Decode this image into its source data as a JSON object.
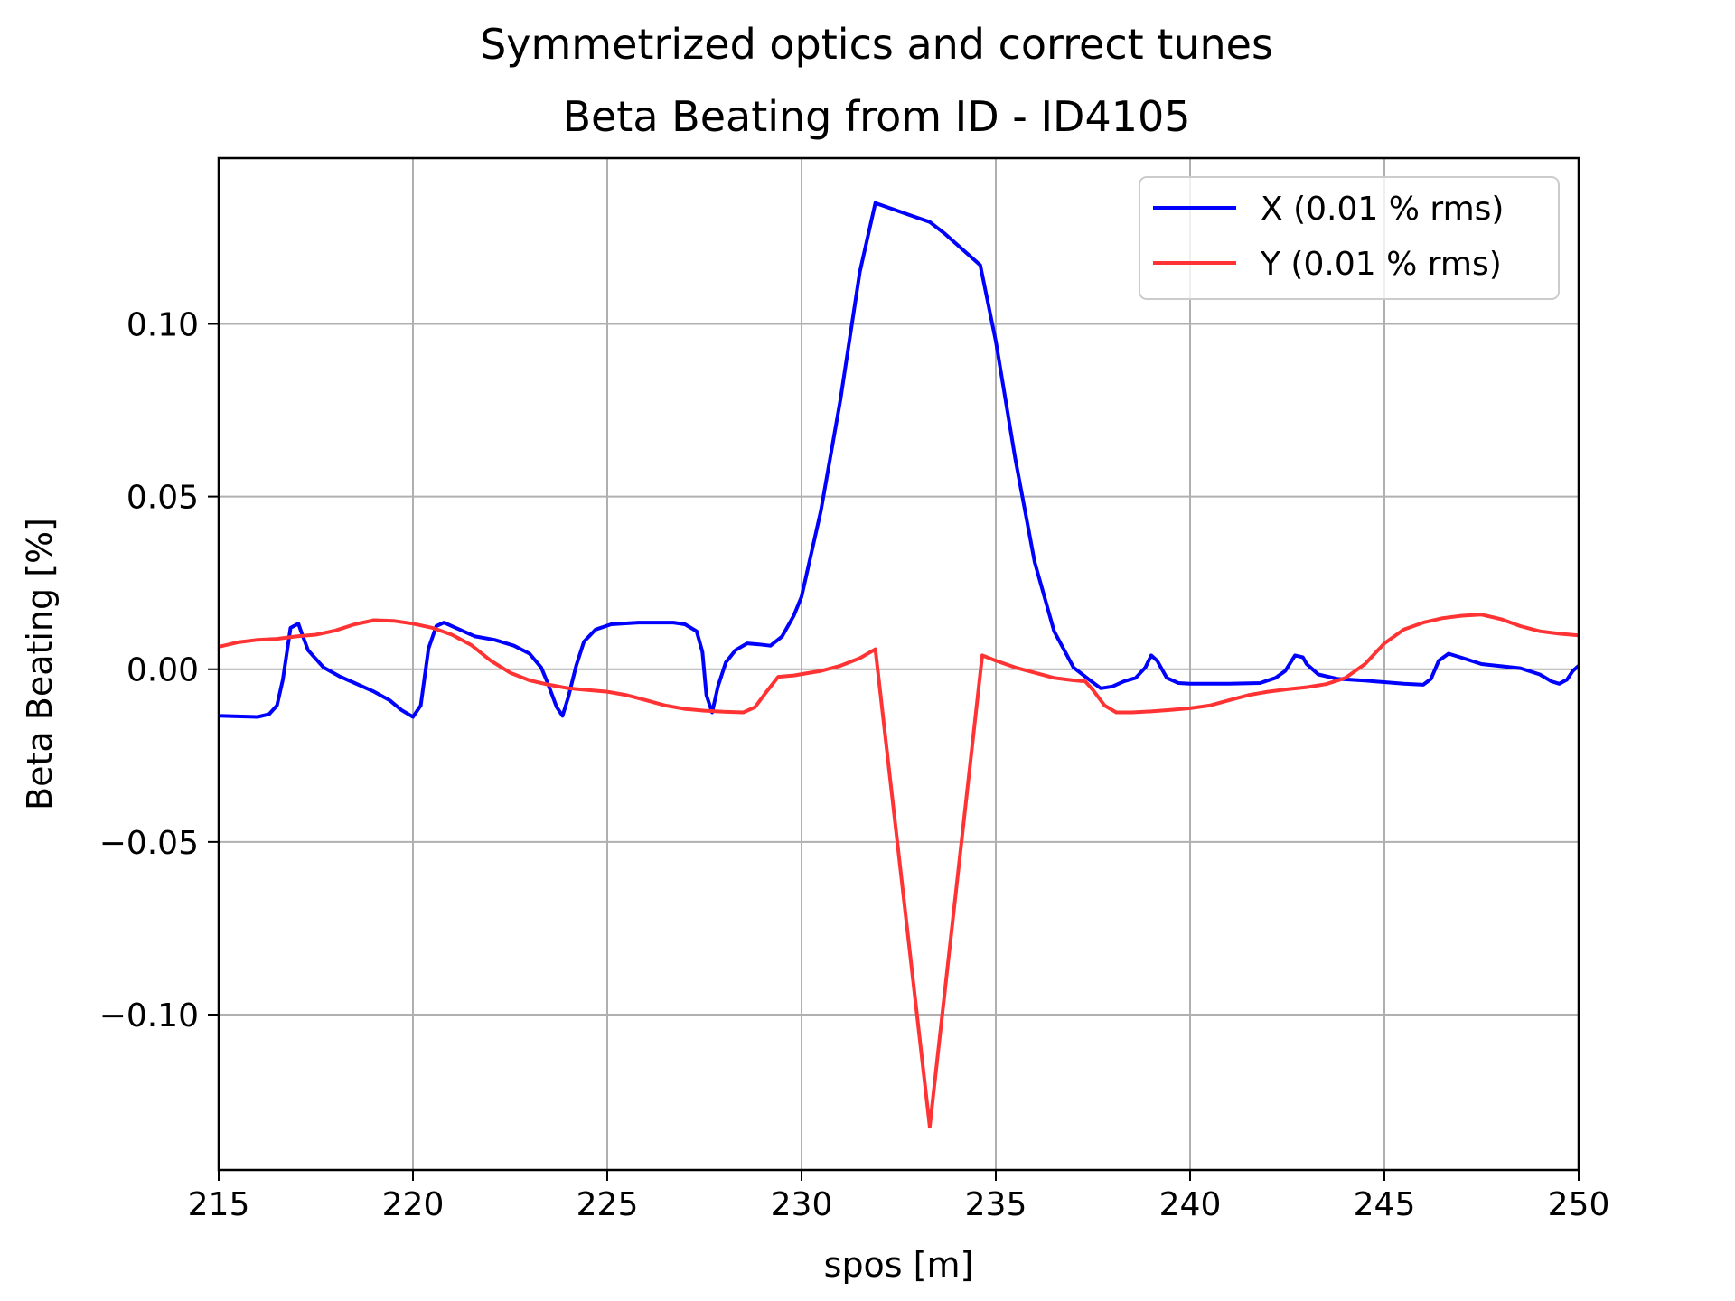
{
  "chart_data": {
    "type": "line",
    "suptitle": "Symmetrized optics and correct tunes",
    "title": "Beta Beating from ID - ID4105",
    "xlabel": "spos [m]",
    "ylabel": "Beta Beating [%]",
    "xlim": [
      215,
      250
    ],
    "ylim": [
      -0.145,
      0.148
    ],
    "xticks": [
      215,
      220,
      225,
      230,
      235,
      240,
      245,
      250
    ],
    "xtick_labels": [
      "215",
      "220",
      "225",
      "230",
      "235",
      "240",
      "245",
      "250"
    ],
    "yticks": [
      -0.1,
      -0.05,
      0.0,
      0.05,
      0.1
    ],
    "ytick_labels": [
      "−0.10",
      "−0.05",
      "0.00",
      "0.05",
      "0.10"
    ],
    "grid": true,
    "legend_position": "upper right",
    "series": [
      {
        "name": "X (0.01 % rms)",
        "color": "#0000ff",
        "points": [
          [
            215.0,
            -0.0135
          ],
          [
            216.0,
            -0.0138
          ],
          [
            216.3,
            -0.013
          ],
          [
            216.5,
            -0.0105
          ],
          [
            216.65,
            -0.003
          ],
          [
            216.85,
            0.012
          ],
          [
            217.05,
            0.0132
          ],
          [
            217.15,
            0.01
          ],
          [
            217.3,
            0.0055
          ],
          [
            217.7,
            0.0005
          ],
          [
            218.1,
            -0.002
          ],
          [
            218.5,
            -0.004
          ],
          [
            219.0,
            -0.0065
          ],
          [
            219.4,
            -0.009
          ],
          [
            219.7,
            -0.0118
          ],
          [
            220.0,
            -0.0138
          ],
          [
            220.2,
            -0.0105
          ],
          [
            220.4,
            0.006
          ],
          [
            220.6,
            0.0125
          ],
          [
            220.8,
            0.0135
          ],
          [
            221.1,
            0.012
          ],
          [
            221.6,
            0.0095
          ],
          [
            222.1,
            0.0085
          ],
          [
            222.6,
            0.0068
          ],
          [
            223.0,
            0.0045
          ],
          [
            223.3,
            0.0005
          ],
          [
            223.45,
            -0.0035
          ],
          [
            223.7,
            -0.011
          ],
          [
            223.85,
            -0.0135
          ],
          [
            224.0,
            -0.008
          ],
          [
            224.2,
            0.001
          ],
          [
            224.4,
            0.008
          ],
          [
            224.7,
            0.0115
          ],
          [
            225.1,
            0.013
          ],
          [
            225.8,
            0.0135
          ],
          [
            226.7,
            0.0135
          ],
          [
            227.0,
            0.013
          ],
          [
            227.3,
            0.011
          ],
          [
            227.45,
            0.005
          ],
          [
            227.55,
            -0.0075
          ],
          [
            227.7,
            -0.0125
          ],
          [
            227.85,
            -0.005
          ],
          [
            228.05,
            0.002
          ],
          [
            228.3,
            0.0055
          ],
          [
            228.6,
            0.0075
          ],
          [
            228.9,
            0.0072
          ],
          [
            229.2,
            0.0068
          ],
          [
            229.5,
            0.0095
          ],
          [
            229.8,
            0.0155
          ],
          [
            230.0,
            0.021
          ],
          [
            230.5,
            0.046
          ],
          [
            231.0,
            0.078
          ],
          [
            231.5,
            0.115
          ],
          [
            231.9,
            0.135
          ],
          [
            232.4,
            0.133
          ],
          [
            233.3,
            0.1295
          ],
          [
            233.7,
            0.126
          ],
          [
            234.2,
            0.121
          ],
          [
            234.6,
            0.117
          ],
          [
            235.0,
            0.095
          ],
          [
            235.5,
            0.061
          ],
          [
            236.0,
            0.031
          ],
          [
            236.5,
            0.011
          ],
          [
            237.0,
            0.0005
          ],
          [
            237.4,
            -0.003
          ],
          [
            237.7,
            -0.0055
          ],
          [
            238.0,
            -0.005
          ],
          [
            238.3,
            -0.0035
          ],
          [
            238.6,
            -0.0025
          ],
          [
            238.85,
            0.0005
          ],
          [
            239.0,
            0.004
          ],
          [
            239.15,
            0.0025
          ],
          [
            239.4,
            -0.0025
          ],
          [
            239.7,
            -0.004
          ],
          [
            240.0,
            -0.0042
          ],
          [
            241.0,
            -0.0042
          ],
          [
            241.8,
            -0.004
          ],
          [
            242.2,
            -0.0025
          ],
          [
            242.45,
            -0.0005
          ],
          [
            242.7,
            0.004
          ],
          [
            242.9,
            0.0035
          ],
          [
            243.0,
            0.0015
          ],
          [
            243.3,
            -0.0015
          ],
          [
            243.8,
            -0.0028
          ],
          [
            244.5,
            -0.0033
          ],
          [
            245.5,
            -0.0042
          ],
          [
            246.0,
            -0.0045
          ],
          [
            246.2,
            -0.0028
          ],
          [
            246.4,
            0.0025
          ],
          [
            246.65,
            0.0045
          ],
          [
            247.0,
            0.0033
          ],
          [
            247.5,
            0.0015
          ],
          [
            248.5,
            0.0003
          ],
          [
            249.0,
            -0.0015
          ],
          [
            249.3,
            -0.0035
          ],
          [
            249.5,
            -0.0042
          ],
          [
            249.7,
            -0.003
          ],
          [
            249.85,
            -0.0005
          ],
          [
            250.0,
            0.001
          ]
        ]
      },
      {
        "name": "Y (0.01 % rms)",
        "color": "#ff3333",
        "points": [
          [
            215.0,
            0.0065
          ],
          [
            215.5,
            0.0078
          ],
          [
            216.0,
            0.0085
          ],
          [
            216.5,
            0.0088
          ],
          [
            217.0,
            0.0095
          ],
          [
            217.5,
            0.01
          ],
          [
            218.0,
            0.0112
          ],
          [
            218.5,
            0.013
          ],
          [
            219.0,
            0.0142
          ],
          [
            219.5,
            0.014
          ],
          [
            220.0,
            0.0132
          ],
          [
            220.5,
            0.012
          ],
          [
            221.0,
            0.01
          ],
          [
            221.5,
            0.007
          ],
          [
            222.0,
            0.0025
          ],
          [
            222.5,
            -0.001
          ],
          [
            223.0,
            -0.0032
          ],
          [
            223.5,
            -0.0045
          ],
          [
            224.0,
            -0.0055
          ],
          [
            224.5,
            -0.006
          ],
          [
            225.0,
            -0.0065
          ],
          [
            225.5,
            -0.0075
          ],
          [
            226.0,
            -0.009
          ],
          [
            226.5,
            -0.0105
          ],
          [
            227.0,
            -0.0115
          ],
          [
            227.5,
            -0.012
          ],
          [
            228.0,
            -0.0123
          ],
          [
            228.5,
            -0.0125
          ],
          [
            228.8,
            -0.011
          ],
          [
            229.1,
            -0.0065
          ],
          [
            229.4,
            -0.0022
          ],
          [
            229.8,
            -0.0018
          ],
          [
            230.5,
            -0.0005
          ],
          [
            231.0,
            0.001
          ],
          [
            231.5,
            0.0032
          ],
          [
            231.9,
            0.0058
          ],
          [
            233.3,
            -0.1325
          ],
          [
            234.65,
            0.004
          ],
          [
            235.0,
            0.0025
          ],
          [
            235.5,
            0.0005
          ],
          [
            236.0,
            -0.001
          ],
          [
            236.5,
            -0.0025
          ],
          [
            237.0,
            -0.0032
          ],
          [
            237.3,
            -0.0035
          ],
          [
            237.5,
            -0.006
          ],
          [
            237.8,
            -0.0105
          ],
          [
            238.1,
            -0.0125
          ],
          [
            238.5,
            -0.0125
          ],
          [
            239.0,
            -0.0122
          ],
          [
            239.5,
            -0.0118
          ],
          [
            240.0,
            -0.0113
          ],
          [
            240.5,
            -0.0105
          ],
          [
            241.0,
            -0.009
          ],
          [
            241.5,
            -0.0075
          ],
          [
            242.0,
            -0.0065
          ],
          [
            242.5,
            -0.0058
          ],
          [
            243.0,
            -0.0052
          ],
          [
            243.5,
            -0.0043
          ],
          [
            244.0,
            -0.0025
          ],
          [
            244.5,
            0.0015
          ],
          [
            245.0,
            0.0075
          ],
          [
            245.5,
            0.0115
          ],
          [
            246.0,
            0.0135
          ],
          [
            246.5,
            0.0148
          ],
          [
            247.0,
            0.0155
          ],
          [
            247.5,
            0.0158
          ],
          [
            248.0,
            0.0145
          ],
          [
            248.5,
            0.0125
          ],
          [
            249.0,
            0.011
          ],
          [
            249.5,
            0.0103
          ],
          [
            250.0,
            0.0098
          ]
        ]
      }
    ]
  }
}
